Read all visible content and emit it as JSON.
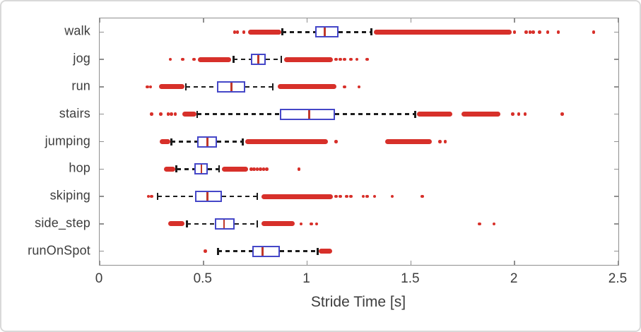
{
  "chart_data": {
    "type": "boxplot",
    "orientation": "horizontal",
    "title": "",
    "xlabel": "Stride Time [s]",
    "ylabel": "",
    "xlim": [
      0,
      2.5
    ],
    "xticks": [
      0,
      0.5,
      1,
      1.5,
      2,
      2.5
    ],
    "xtick_labels": [
      "0",
      "0.5",
      "1",
      "1.5",
      "2",
      "2.5"
    ],
    "grid": false,
    "legend": null,
    "categories": [
      "walk",
      "jog",
      "run",
      "stairs",
      "jumping",
      "hop",
      "skiping",
      "side_step",
      "runOnSpot"
    ],
    "series": [
      {
        "label": "walk",
        "whisker_low": 0.88,
        "q1": 1.04,
        "median": 1.085,
        "q3": 1.15,
        "whisker_high": 1.31,
        "outlier_bands_low": [
          [
            0.715,
            0.875
          ]
        ],
        "outlier_points_low": [
          0.65,
          0.665,
          0.695
        ],
        "outlier_bands_high": [
          [
            1.32,
            1.985
          ]
        ],
        "outlier_points_high": [
          2.0,
          2.055,
          2.075,
          2.09,
          2.12,
          2.16,
          2.21,
          2.38
        ]
      },
      {
        "label": "jog",
        "whisker_low": 0.645,
        "q1": 0.73,
        "median": 0.765,
        "q3": 0.8,
        "whisker_high": 0.875,
        "outlier_bands_low": [
          [
            0.475,
            0.635
          ]
        ],
        "outlier_points_low": [
          0.34,
          0.4,
          0.455
        ],
        "outlier_bands_high": [
          [
            0.89,
            1.125
          ]
        ],
        "outlier_points_high": [
          1.14,
          1.16,
          1.18,
          1.21,
          1.24,
          1.29
        ]
      },
      {
        "label": "run",
        "whisker_low": 0.415,
        "q1": 0.565,
        "median": 0.635,
        "q3": 0.7,
        "whisker_high": 0.835,
        "outlier_bands_low": [
          [
            0.285,
            0.41
          ]
        ],
        "outlier_points_low": [
          0.23,
          0.245
        ],
        "outlier_bands_high": [
          [
            0.86,
            1.14
          ]
        ],
        "outlier_points_high": [
          1.18,
          1.25
        ]
      },
      {
        "label": "stairs",
        "whisker_low": 0.47,
        "q1": 0.87,
        "median": 1.01,
        "q3": 1.135,
        "whisker_high": 1.52,
        "outlier_bands_low": [
          [
            0.4,
            0.465
          ]
        ],
        "outlier_points_low": [
          0.25,
          0.295,
          0.33,
          0.345,
          0.365
        ],
        "outlier_bands_high": [
          [
            1.53,
            1.7
          ],
          [
            1.745,
            1.93
          ]
        ],
        "outlier_points_high": [
          1.99,
          2.02,
          2.05,
          2.23
        ]
      },
      {
        "label": "jumping",
        "whisker_low": 0.345,
        "q1": 0.47,
        "median": 0.52,
        "q3": 0.565,
        "whisker_high": 0.69,
        "outlier_bands_low": [
          [
            0.29,
            0.34
          ]
        ],
        "outlier_points_low": [],
        "outlier_bands_high": [
          [
            0.7,
            1.1
          ],
          [
            1.375,
            1.6
          ]
        ],
        "outlier_points_high": [
          1.14,
          1.64,
          1.665
        ]
      },
      {
        "label": "hop",
        "whisker_low": 0.37,
        "q1": 0.455,
        "median": 0.49,
        "q3": 0.52,
        "whisker_high": 0.575,
        "outlier_bands_low": [
          [
            0.31,
            0.365
          ]
        ],
        "outlier_points_low": [],
        "outlier_bands_high": [
          [
            0.59,
            0.715
          ]
        ],
        "outlier_points_high": [
          0.73,
          0.745,
          0.76,
          0.775,
          0.79,
          0.805,
          0.96
        ]
      },
      {
        "label": "skiping",
        "whisker_low": 0.28,
        "q1": 0.46,
        "median": 0.52,
        "q3": 0.59,
        "whisker_high": 0.76,
        "outlier_bands_low": [],
        "outlier_points_low": [
          0.235,
          0.25
        ],
        "outlier_bands_high": [
          [
            0.78,
            1.125
          ]
        ],
        "outlier_points_high": [
          1.14,
          1.16,
          1.19,
          1.21,
          1.27,
          1.29,
          1.325,
          1.41,
          1.555
        ]
      },
      {
        "label": "side_step",
        "whisker_low": 0.42,
        "q1": 0.555,
        "median": 0.6,
        "q3": 0.65,
        "whisker_high": 0.76,
        "outlier_bands_low": [
          [
            0.33,
            0.41
          ]
        ],
        "outlier_points_low": [],
        "outlier_bands_high": [
          [
            0.78,
            0.94
          ]
        ],
        "outlier_points_high": [
          0.97,
          1.02,
          1.045,
          1.83,
          1.9
        ]
      },
      {
        "label": "runOnSpot",
        "whisker_low": 0.57,
        "q1": 0.735,
        "median": 0.785,
        "q3": 0.87,
        "whisker_high": 1.05,
        "outlier_bands_low": [],
        "outlier_points_low": [
          0.51
        ],
        "outlier_bands_high": [
          [
            1.055,
            1.12
          ]
        ],
        "outlier_points_high": []
      }
    ],
    "colors": {
      "box": "#4547c8",
      "median": "#c0392b",
      "outlier": "#d7302a",
      "whisker": "#1c1c1c",
      "axis": "#8f8f8f",
      "text": "#3d3d3d"
    }
  }
}
